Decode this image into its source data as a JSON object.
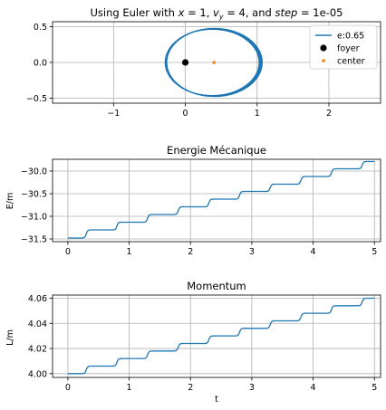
{
  "chart_data": [
    {
      "type": "line",
      "title_parts": [
        "Using Euler with ",
        "x",
        " = 1, ",
        "v",
        "y",
        " = 4, and ",
        "step",
        " = 1e-05"
      ],
      "xlabel": "",
      "ylabel": "",
      "xlim": [
        -1.85,
        2.72
      ],
      "ylim": [
        -0.57,
        0.57
      ],
      "xticks": [
        -1,
        0,
        1,
        2
      ],
      "yticks": [
        -0.5,
        0.0,
        0.5
      ],
      "xtick_labels": [
        "−1",
        "0",
        "1",
        "2"
      ],
      "ytick_labels": [
        "−0.5",
        "0.0",
        "0.5"
      ],
      "grid": true,
      "legend_position": "top-right",
      "series": [
        {
          "name": "e:0.65",
          "kind": "orbit",
          "color": "#1f77b4",
          "focus_x": 0.0,
          "x_min": -0.27,
          "x_max": 1.05,
          "semi_minor": 0.47,
          "rings": 12
        },
        {
          "name": "foyer",
          "kind": "point",
          "color": "#000000",
          "x": 0.0,
          "y": 0.0
        },
        {
          "name": "center",
          "kind": "point",
          "color": "#ff7f0e",
          "x": 0.4,
          "y": 0.0
        }
      ]
    },
    {
      "type": "line",
      "title": "Energie Mécanique",
      "xlabel": "",
      "ylabel": "E/m",
      "xlim": [
        -0.25,
        5.1
      ],
      "ylim": [
        -31.56,
        -29.74
      ],
      "xticks": [
        0,
        1,
        2,
        3,
        4,
        5
      ],
      "yticks": [
        -31.5,
        -31.0,
        -30.5,
        -30.0
      ],
      "xtick_labels": [
        "0",
        "1",
        "2",
        "3",
        "4",
        "5"
      ],
      "ytick_labels": [
        "−31.5",
        "−31.0",
        "−30.5",
        "−30.0"
      ],
      "grid": true,
      "series": [
        {
          "name": "",
          "color": "#1f77b4",
          "x_range": [
            0,
            5
          ],
          "start": -31.48,
          "steps": [
            0.3,
            0.8,
            1.3,
            1.8,
            2.3,
            2.8,
            3.3,
            3.8,
            4.3,
            4.8
          ],
          "levels": [
            -31.48,
            -31.3,
            -31.13,
            -30.96,
            -30.79,
            -30.62,
            -30.45,
            -30.29,
            -30.12,
            -29.95,
            -29.79
          ]
        }
      ]
    },
    {
      "type": "line",
      "title": "Momentum",
      "xlabel": "t",
      "ylabel": "L/m",
      "xlim": [
        -0.25,
        5.1
      ],
      "ylim": [
        3.997,
        4.0625
      ],
      "xticks": [
        0,
        1,
        2,
        3,
        4,
        5
      ],
      "yticks": [
        4.0,
        4.02,
        4.04,
        4.06
      ],
      "xtick_labels": [
        "0",
        "1",
        "2",
        "3",
        "4",
        "5"
      ],
      "ytick_labels": [
        "4.00",
        "4.02",
        "4.04",
        "4.06"
      ],
      "grid": true,
      "series": [
        {
          "name": "",
          "color": "#1f77b4",
          "x_range": [
            0,
            5
          ],
          "steps": [
            0.3,
            0.8,
            1.3,
            1.8,
            2.3,
            2.8,
            3.3,
            3.8,
            4.3,
            4.8
          ],
          "levels": [
            4.0,
            4.006,
            4.012,
            4.018,
            4.024,
            4.03,
            4.036,
            4.042,
            4.048,
            4.054,
            4.06
          ]
        }
      ]
    }
  ]
}
